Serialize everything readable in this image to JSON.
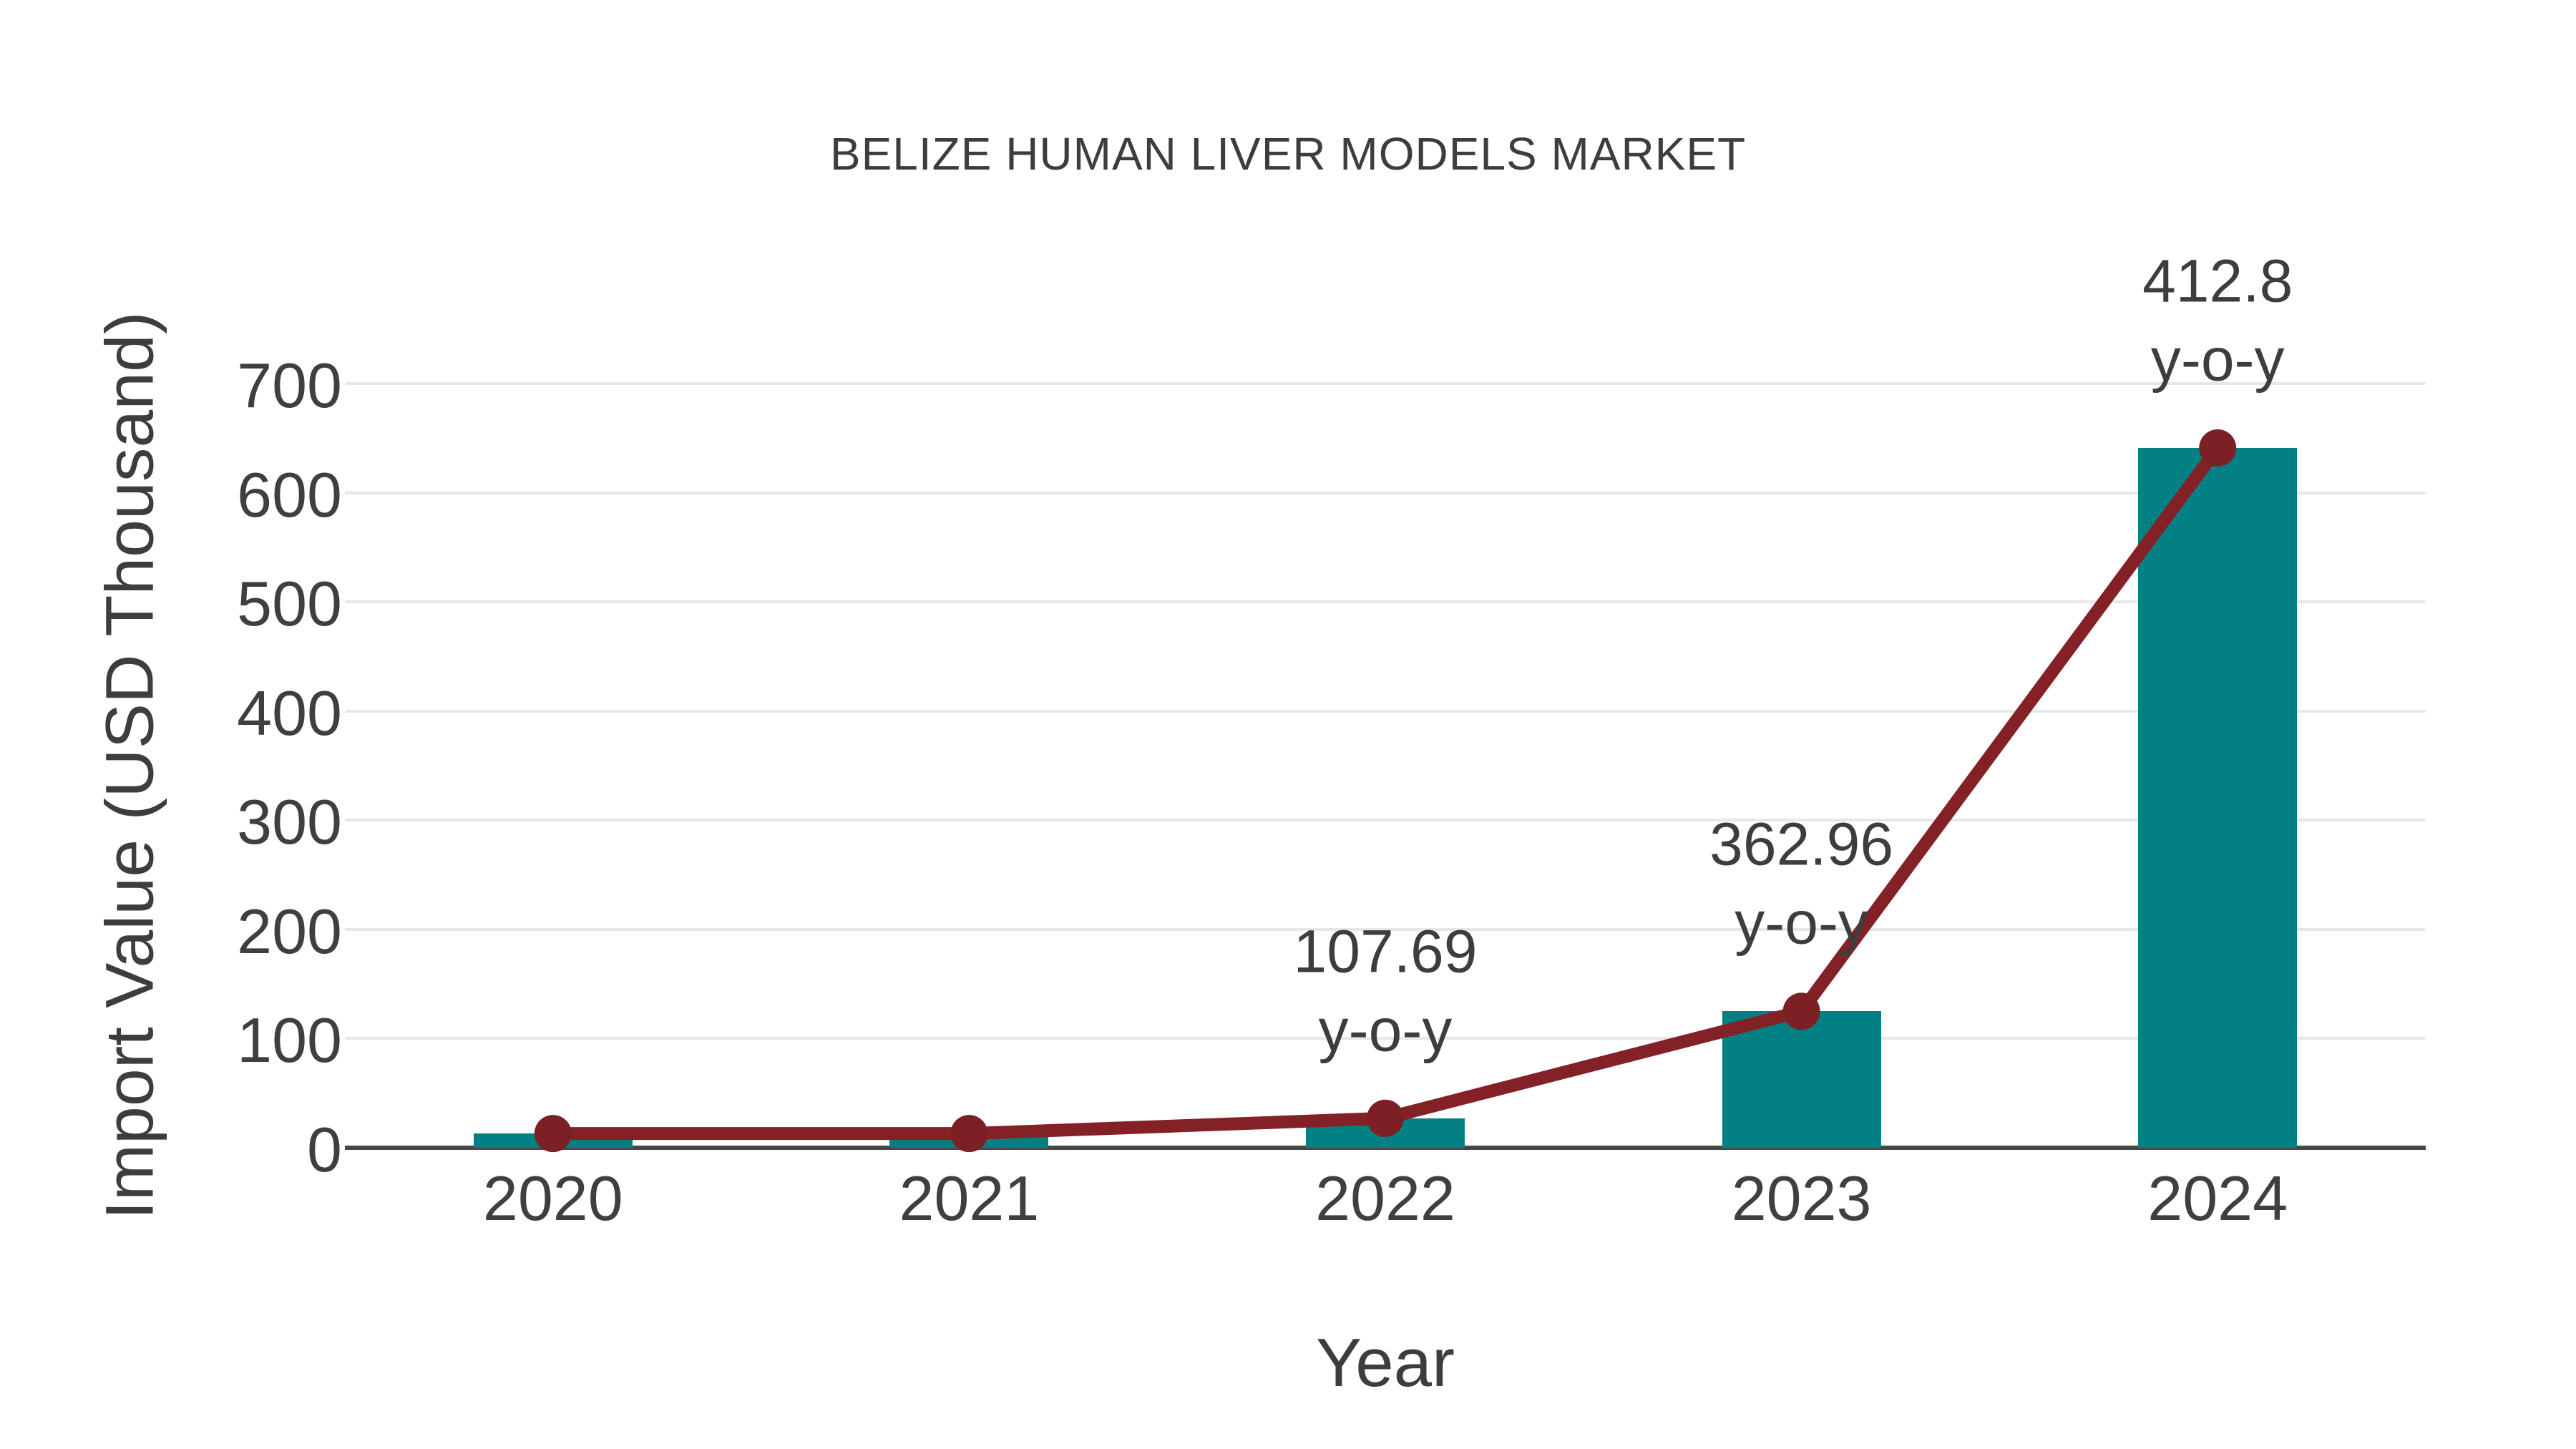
{
  "title": "BELIZE HUMAN LIVER MODELS MARKET",
  "chart_data": {
    "type": "bar",
    "title": "BELIZE HUMAN LIVER MODELS MARKET",
    "xlabel": "Year",
    "ylabel": "Import Value (USD Thousand)",
    "categories": [
      "2020",
      "2021",
      "2022",
      "2023",
      "2024"
    ],
    "series": [
      {
        "name": "import-value-bars",
        "type": "bar",
        "values": [
          13,
          13,
          27,
          125,
          641
        ]
      },
      {
        "name": "import-value-trend",
        "type": "line",
        "values": [
          13,
          13,
          27,
          125,
          641
        ]
      }
    ],
    "annotations": [
      {
        "category": "2022",
        "value_label": "107.69",
        "unit_label": "y-o-y"
      },
      {
        "category": "2023",
        "value_label": "362.96",
        "unit_label": "y-o-y"
      },
      {
        "category": "2024",
        "value_label": "412.8",
        "unit_label": "y-o-y"
      }
    ],
    "ylim": [
      0,
      700
    ],
    "yticks": [
      0,
      100,
      200,
      300,
      400,
      500,
      600,
      700
    ],
    "grid": true,
    "legend": "none",
    "colors": {
      "bar": "#028083",
      "line": "#842126",
      "marker": "#7d2025",
      "text": "#3d3d3d",
      "grid": "#e7e7e7",
      "axis": "#474747",
      "background": "#ffffff"
    }
  }
}
